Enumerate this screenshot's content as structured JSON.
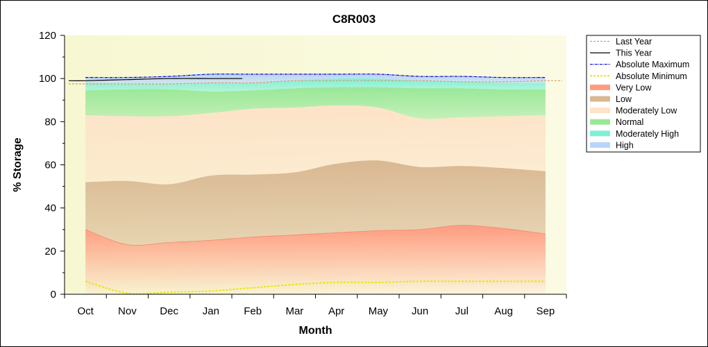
{
  "chart_data": {
    "type": "area",
    "title": "C8R003",
    "xlabel": "Month",
    "ylabel": "% Storage",
    "categories": [
      "Oct",
      "Nov",
      "Dec",
      "Jan",
      "Feb",
      "Mar",
      "Apr",
      "May",
      "Jun",
      "Jul",
      "Aug",
      "Sep"
    ],
    "ylim": [
      0,
      120
    ],
    "yticks": [
      0,
      20,
      40,
      60,
      80,
      100,
      120
    ],
    "grid": false,
    "legend_position": "right",
    "bands": [
      {
        "name": "Very Low",
        "color": "#ff9b7f",
        "values": [
          30,
          23,
          24,
          25,
          26.5,
          27.5,
          28.5,
          29.5,
          30,
          32,
          30.5,
          28
        ]
      },
      {
        "name": "Low",
        "color": "#d9b892",
        "values": [
          52,
          52.5,
          51,
          55,
          55.5,
          56.5,
          60.5,
          62,
          59,
          59.5,
          58.5,
          57
        ]
      },
      {
        "name": "Moderately Low",
        "color": "#fde3c8",
        "values": [
          83,
          82.5,
          82.5,
          84,
          86,
          86.5,
          87.5,
          86.5,
          81.5,
          82,
          82.5,
          83
        ]
      },
      {
        "name": "Normal",
        "color": "#98e898",
        "values": [
          94.5,
          95,
          95,
          94,
          94.5,
          95.5,
          96,
          96,
          95.5,
          95.5,
          95,
          95
        ]
      },
      {
        "name": "Moderately High",
        "color": "#7ff0d6",
        "values": [
          98,
          97.5,
          97.5,
          98,
          98,
          99,
          100,
          100,
          99,
          98.5,
          98,
          98
        ]
      },
      {
        "name": "High",
        "color": "#b8d4f8",
        "values": [
          100.5,
          100.5,
          101,
          102,
          102,
          102,
          102,
          102,
          101,
          101,
          100.5,
          100.5
        ]
      }
    ],
    "series": [
      {
        "name": "Last Year",
        "color": "#d49a6a",
        "style": "dashed",
        "x": [
          -0.4,
          0,
          1,
          2,
          3,
          4,
          5,
          6,
          7,
          8,
          9,
          10,
          11,
          11.4
        ],
        "values": [
          97.5,
          97.5,
          97.5,
          97.5,
          98,
          98,
          99,
          99,
          99,
          99,
          98.5,
          98.5,
          99,
          99
        ]
      },
      {
        "name": "This Year",
        "color": "#000000",
        "style": "solid",
        "x": [
          -0.4,
          0,
          1,
          2,
          3,
          3.75
        ],
        "values": [
          99,
          99,
          99.5,
          100,
          100,
          100
        ]
      },
      {
        "name": "Absolute Maximum",
        "color": "#0000cc",
        "style": "dashdot",
        "x": [
          0,
          1,
          2,
          3,
          4,
          5,
          6,
          7,
          8,
          9,
          10,
          11
        ],
        "values": [
          100.5,
          100.5,
          101,
          102,
          102,
          102,
          102,
          102,
          101,
          101,
          100.5,
          100.5
        ]
      },
      {
        "name": "Absolute Minimum",
        "color": "#e8e800",
        "style": "dashed",
        "x": [
          0,
          1,
          2,
          3,
          4,
          5,
          6,
          7,
          8,
          9,
          10,
          11
        ],
        "values": [
          6,
          0.5,
          1,
          1.5,
          3,
          4.5,
          5.5,
          5.5,
          6,
          6,
          6,
          6
        ]
      }
    ],
    "legend": [
      "Last Year",
      "This Year",
      "Absolute Maximum",
      "Absolute Minimum",
      "Very Low",
      "Low",
      "Moderately Low",
      "Normal",
      "Moderately High",
      "High"
    ]
  }
}
